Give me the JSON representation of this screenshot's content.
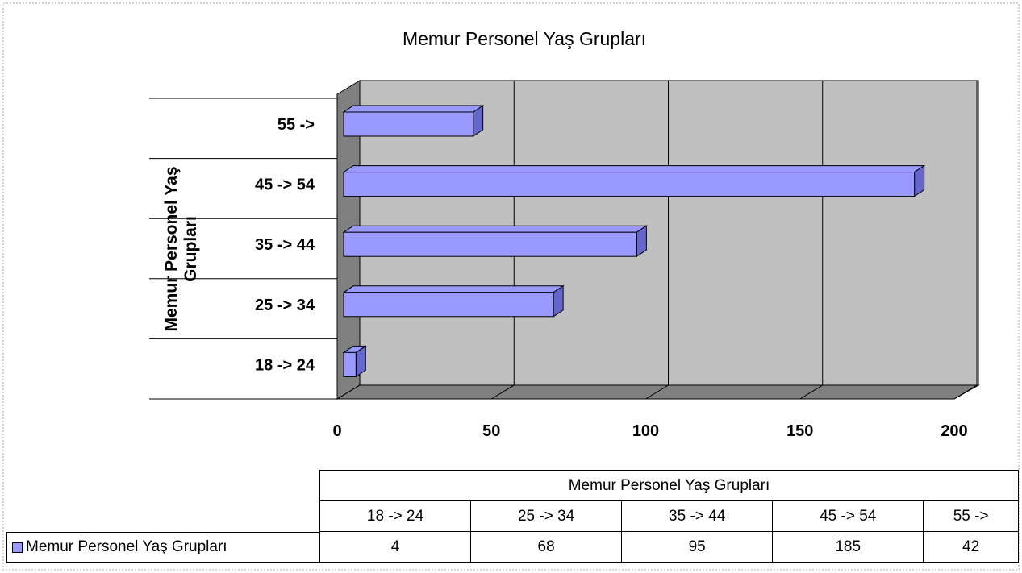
{
  "chart_data": {
    "type": "bar",
    "orientation": "horizontal",
    "title": "Memur Personel Yaş Grupları",
    "y_label": "Memur Personel Yaş Grupları",
    "categories": [
      "18 -> 24",
      "25 -> 34",
      "35 -> 44",
      "45 -> 54",
      "55 ->"
    ],
    "series": [
      {
        "name": "Memur Personel Yaş Grupları",
        "color": "#9999ff",
        "values": [
          4,
          68,
          95,
          185,
          42
        ]
      }
    ],
    "xlim": [
      0,
      200
    ],
    "xticks": [
      0,
      50,
      100,
      150,
      200
    ],
    "grid": true,
    "data_table_title": "Memur Personel Yaş Grupları"
  }
}
